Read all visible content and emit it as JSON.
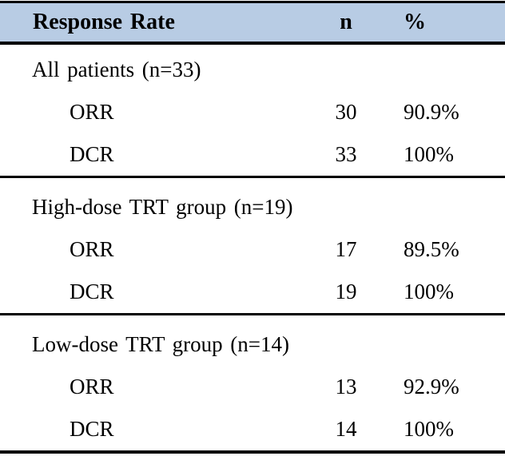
{
  "meta": {
    "header_bg": "#b8cce4",
    "border_color": "#000000"
  },
  "table": {
    "header": {
      "label": "Response Rate",
      "n": "n",
      "pct": "%"
    },
    "sections": [
      {
        "label": "All patients (n=33)",
        "rows": [
          {
            "label": "ORR",
            "n": "30",
            "pct": "90.9%"
          },
          {
            "label": "DCR",
            "n": "33",
            "pct": "100%"
          }
        ]
      },
      {
        "label": "High-dose TRT group (n=19)",
        "rows": [
          {
            "label": "ORR",
            "n": "17",
            "pct": "89.5%"
          },
          {
            "label": "DCR",
            "n": "19",
            "pct": "100%"
          }
        ]
      },
      {
        "label": "Low-dose TRT group (n=14)",
        "rows": [
          {
            "label": "ORR",
            "n": "13",
            "pct": "92.9%"
          },
          {
            "label": "DCR",
            "n": "14",
            "pct": "100%"
          }
        ]
      }
    ]
  }
}
